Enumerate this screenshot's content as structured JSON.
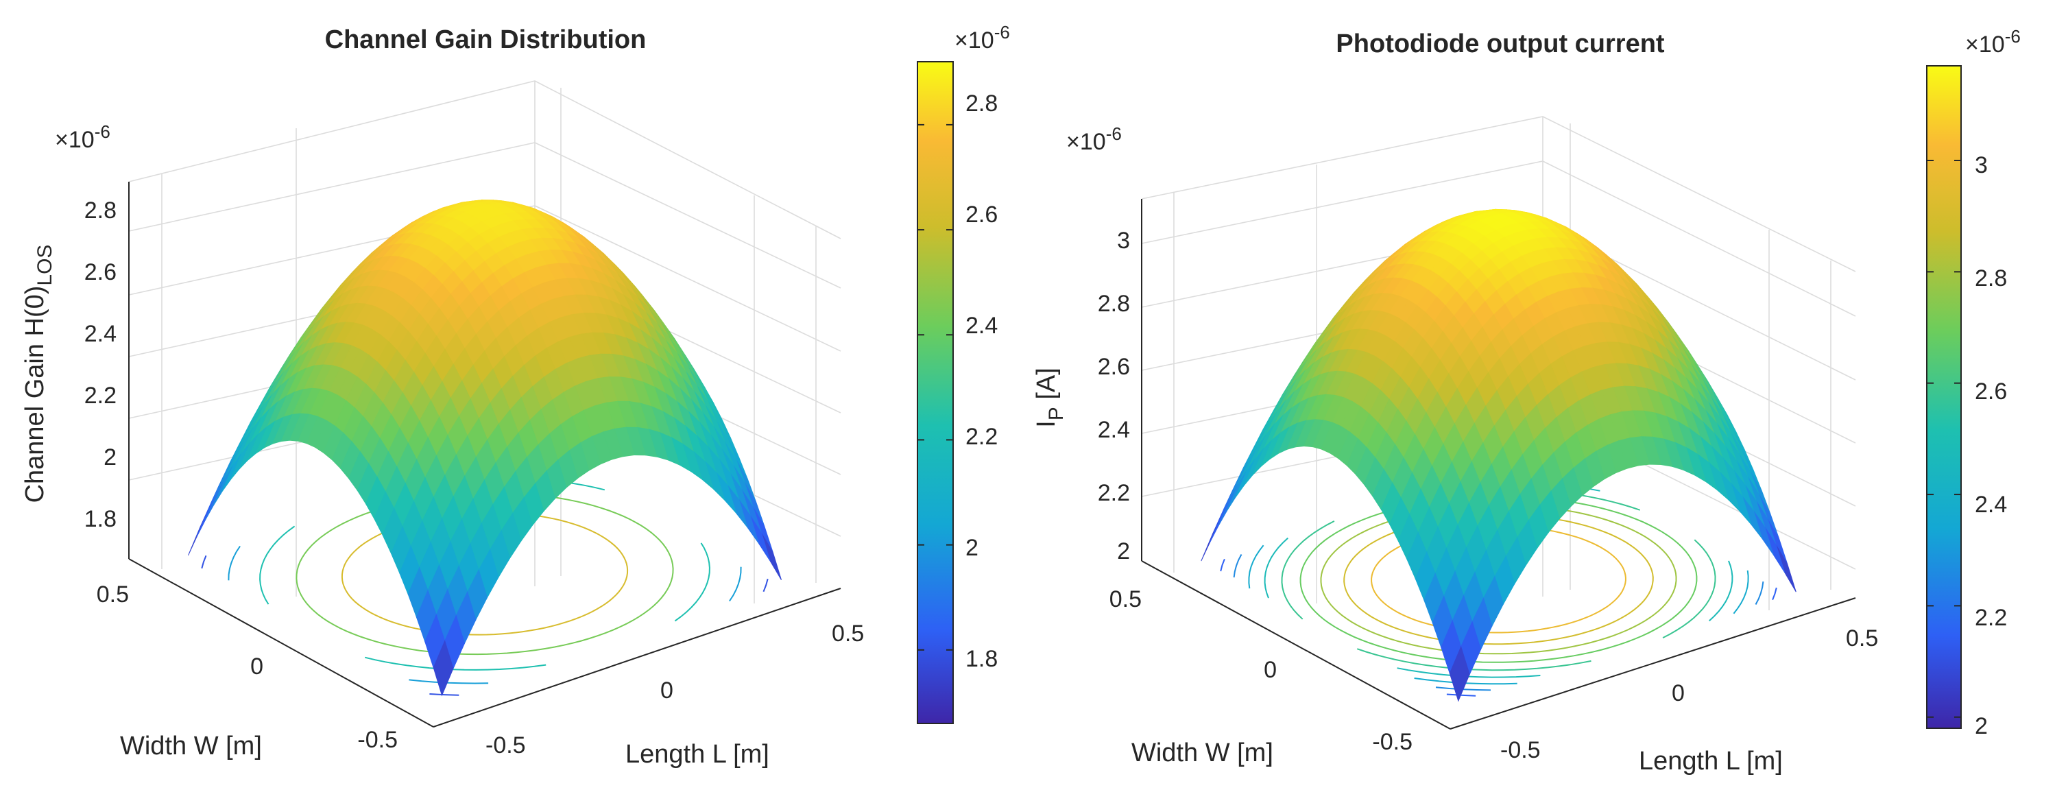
{
  "chart_data": [
    {
      "type": "surface",
      "title": "Channel Gain Distribution",
      "xlabel": "Length L [m]",
      "ylabel": "Width W [m]",
      "zlabel_main": "Channel Gain H(0)",
      "zlabel_sub": "LOS",
      "z_exponent_base": "×10",
      "z_exponent_power": "-6",
      "x_ticks": [
        "-0.5",
        "0",
        "0.5"
      ],
      "y_ticks": [
        "-0.5",
        "0",
        "0.5"
      ],
      "z_ticks": [
        "1.8",
        "2",
        "2.2",
        "2.4",
        "2.6",
        "2.8"
      ],
      "colorbar_ticks": [
        "1.8",
        "2",
        "2.2",
        "2.4",
        "2.6",
        "2.8"
      ],
      "colorbar_exponent_base": "×10",
      "colorbar_exponent_power": "-6",
      "xlim": [
        -0.6,
        0.6
      ],
      "ylim": [
        -0.6,
        0.6
      ],
      "zlim": [
        1.66,
        2.92
      ],
      "surface": {
        "peak": 2.87,
        "center_x": 0,
        "center_y": 0,
        "corner_value": 1.68,
        "shape": "radially decreasing"
      },
      "contour_levels": [
        1.8,
        2.0,
        2.2,
        2.4,
        2.6
      ],
      "colormap": [
        "#3e26a8",
        "#2e60f5",
        "#14a7d4",
        "#1ec0b0",
        "#6ccd5c",
        "#cdbd2c",
        "#f9ba34",
        "#f9fb15"
      ],
      "grid": true,
      "view": "3d"
    },
    {
      "type": "surface",
      "title": "Photodiode output current",
      "xlabel": "Length L [m]",
      "ylabel": "Width W [m]",
      "zlabel_main": "I",
      "zlabel_sub": "P",
      "zlabel_unit": " [A]",
      "z_exponent_base": "×10",
      "z_exponent_power": "-6",
      "x_ticks": [
        "-0.5",
        "0",
        "0.5"
      ],
      "y_ticks": [
        "-0.5",
        "0",
        "0.5"
      ],
      "z_ticks": [
        "2",
        "2.2",
        "2.4",
        "2.6",
        "2.8",
        "3"
      ],
      "colorbar_ticks": [
        "2",
        "2.2",
        "2.4",
        "2.6",
        "2.8",
        "3"
      ],
      "colorbar_exponent_base": "×10",
      "colorbar_exponent_power": "-6",
      "xlim": [
        -0.6,
        0.6
      ],
      "ylim": [
        -0.6,
        0.6
      ],
      "zlim": [
        1.98,
        3.17
      ],
      "surface": {
        "peak": 3.16,
        "center_x": 0,
        "center_y": 0,
        "corner_value": 1.99,
        "shape": "radially decreasing"
      },
      "contour_levels": [
        2.05,
        2.15,
        2.25,
        2.35,
        2.45,
        2.55,
        2.65,
        2.75,
        2.85,
        2.95
      ],
      "colormap": [
        "#3e26a8",
        "#2e60f5",
        "#14a7d4",
        "#1ec0b0",
        "#6ccd5c",
        "#cdbd2c",
        "#f9ba34",
        "#f9fb15"
      ],
      "grid": true,
      "view": "3d"
    }
  ]
}
